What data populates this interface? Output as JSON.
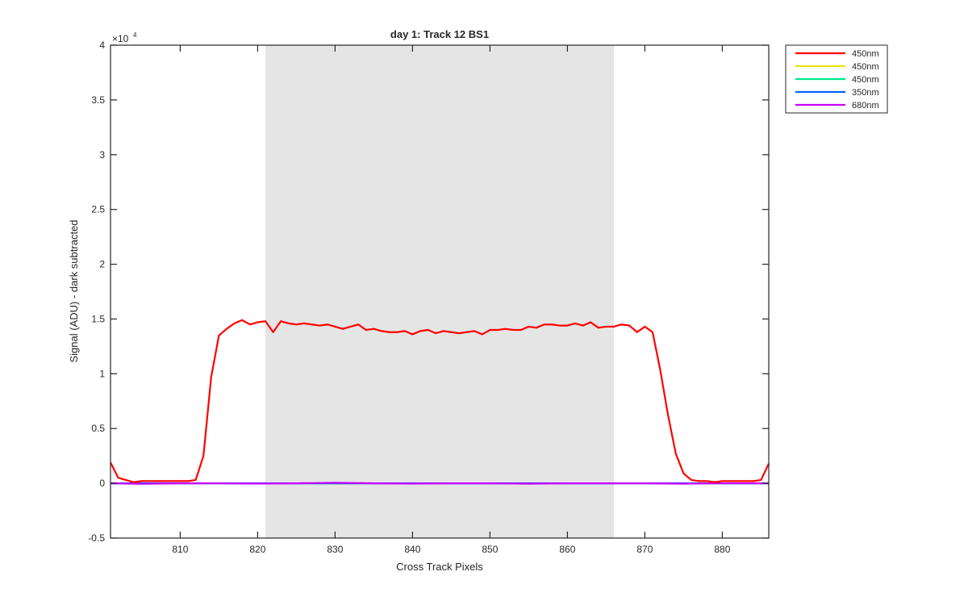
{
  "chart_data": {
    "type": "line",
    "title": "day 1: Track 12  BS1",
    "xlabel": "Cross Track Pixels",
    "ylabel": "Signal (ADU) - dark subtracted",
    "y_exponent_label": "×10",
    "y_exponent_power": "4",
    "xlim": [
      801,
      886
    ],
    "ylim": [
      -0.5,
      4
    ],
    "x_ticks": [
      810,
      820,
      830,
      840,
      850,
      860,
      870,
      880
    ],
    "y_ticks": [
      -0.5,
      0,
      0.5,
      1,
      1.5,
      2,
      2.5,
      3,
      3.5,
      4
    ],
    "x_tick_labels": [
      "810",
      "820",
      "830",
      "840",
      "850",
      "860",
      "870",
      "880"
    ],
    "y_tick_labels": [
      "-0.5",
      "0",
      "0.5",
      "1",
      "1.5",
      "2",
      "2.5",
      "3",
      "3.5",
      "4"
    ],
    "shaded_region": {
      "x_range": [
        821,
        866
      ],
      "color": "#e5e5e5"
    },
    "legend_position": "outside-top-right",
    "grid": false,
    "series": [
      {
        "name": "450nm",
        "color": "#ff0000",
        "x": [
          801,
          802,
          803,
          804,
          805,
          806,
          807,
          808,
          809,
          810,
          811,
          812,
          813,
          814,
          815,
          816,
          817,
          818,
          819,
          820,
          821,
          822,
          823,
          824,
          825,
          826,
          827,
          828,
          829,
          830,
          831,
          832,
          833,
          834,
          835,
          836,
          837,
          838,
          839,
          840,
          841,
          842,
          843,
          844,
          845,
          846,
          847,
          848,
          849,
          850,
          851,
          852,
          853,
          854,
          855,
          856,
          857,
          858,
          859,
          860,
          861,
          862,
          863,
          864,
          865,
          866,
          867,
          868,
          869,
          870,
          871,
          872,
          873,
          874,
          875,
          876,
          877,
          878,
          879,
          880,
          881,
          882,
          883,
          884,
          885,
          886
        ],
        "y": [
          0.19,
          0.05,
          0.03,
          0.01,
          0.02,
          0.02,
          0.02,
          0.02,
          0.02,
          0.02,
          0.02,
          0.03,
          0.25,
          0.97,
          1.35,
          1.41,
          1.46,
          1.49,
          1.45,
          1.47,
          1.48,
          1.38,
          1.48,
          1.46,
          1.45,
          1.46,
          1.45,
          1.44,
          1.45,
          1.43,
          1.41,
          1.43,
          1.45,
          1.4,
          1.41,
          1.39,
          1.38,
          1.38,
          1.39,
          1.36,
          1.39,
          1.4,
          1.37,
          1.39,
          1.38,
          1.37,
          1.38,
          1.39,
          1.36,
          1.4,
          1.4,
          1.41,
          1.4,
          1.4,
          1.43,
          1.42,
          1.45,
          1.45,
          1.44,
          1.44,
          1.46,
          1.44,
          1.47,
          1.42,
          1.43,
          1.43,
          1.45,
          1.44,
          1.38,
          1.43,
          1.38,
          1.03,
          0.62,
          0.27,
          0.09,
          0.03,
          0.02,
          0.02,
          0.01,
          0.02,
          0.02,
          0.02,
          0.02,
          0.02,
          0.03,
          0.18
        ]
      },
      {
        "name": "450nm",
        "color": "#e6e600",
        "x": [
          801,
          820,
          840,
          860,
          886
        ],
        "y": [
          0.0,
          0.0,
          0.0,
          0.0,
          0.0
        ]
      },
      {
        "name": "450nm",
        "color": "#00e68c",
        "x": [
          801,
          820,
          840,
          860,
          886
        ],
        "y": [
          0.0,
          0.0,
          0.0,
          0.0,
          0.0
        ]
      },
      {
        "name": "350nm",
        "color": "#0066ff",
        "x": [
          801,
          820,
          840,
          860,
          886
        ],
        "y": [
          0.0,
          0.0,
          0.0,
          0.0,
          0.0
        ]
      },
      {
        "name": "680nm",
        "color": "#cc00ff",
        "x": [
          801,
          805,
          810,
          815,
          820,
          825,
          830,
          835,
          840,
          845,
          850,
          855,
          860,
          865,
          870,
          875,
          880,
          886
        ],
        "y": [
          0.0,
          -0.005,
          0.0,
          0.0,
          -0.003,
          0.0,
          0.005,
          0.0,
          -0.003,
          0.0,
          0.0,
          -0.004,
          0.0,
          0.0,
          0.0,
          -0.004,
          0.0,
          0.0
        ]
      }
    ]
  }
}
